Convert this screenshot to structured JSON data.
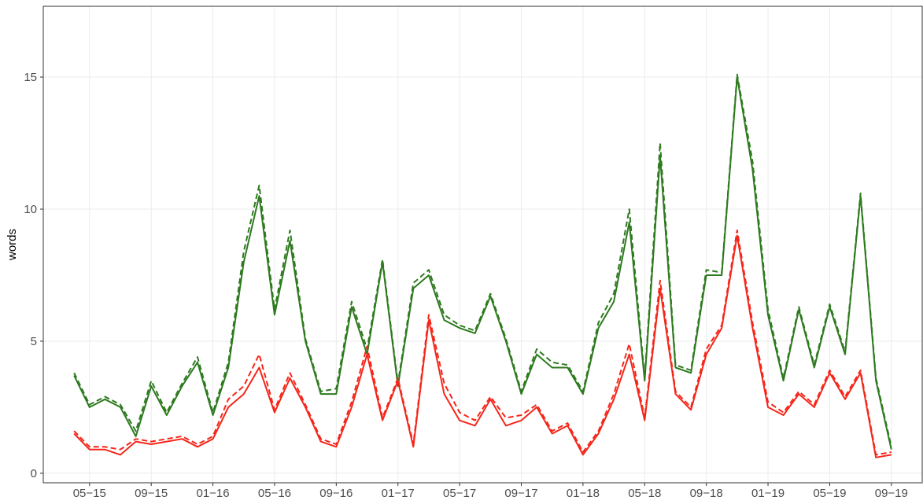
{
  "chart_data": {
    "type": "line",
    "y_label": "words",
    "x": [
      "2015-04",
      "2015-05",
      "2015-06",
      "2015-07",
      "2015-08",
      "2015-09",
      "2015-10",
      "2015-11",
      "2015-12",
      "2016-01",
      "2016-02",
      "2016-03",
      "2016-04",
      "2016-05",
      "2016-06",
      "2016-07",
      "2016-08",
      "2016-09",
      "2016-10",
      "2016-11",
      "2016-12",
      "2017-01",
      "2017-02",
      "2017-03",
      "2017-04",
      "2017-05",
      "2017-06",
      "2017-07",
      "2017-08",
      "2017-09",
      "2017-10",
      "2017-11",
      "2017-12",
      "2018-01",
      "2018-02",
      "2018-03",
      "2018-04",
      "2018-05",
      "2018-06",
      "2018-07",
      "2018-08",
      "2018-09",
      "2018-10",
      "2018-11",
      "2018-12",
      "2019-01",
      "2019-02",
      "2019-03",
      "2019-04",
      "2019-05",
      "2019-06",
      "2019-07",
      "2019-08",
      "2019-09"
    ],
    "series": [
      {
        "color": "#2e7a1f",
        "linestyle": "solid",
        "values": [
          3.7,
          2.5,
          2.8,
          2.5,
          1.4,
          3.3,
          2.2,
          3.3,
          4.2,
          2.2,
          4.0,
          8.0,
          10.5,
          6.0,
          8.8,
          5.0,
          3.0,
          3.0,
          6.3,
          4.5,
          8.0,
          3.3,
          7.0,
          7.5,
          5.8,
          5.5,
          5.3,
          6.7,
          5.0,
          3.0,
          4.5,
          4.0,
          4.0,
          3.0,
          5.5,
          6.5,
          9.5,
          3.5,
          12.0,
          4.0,
          3.8,
          7.5,
          7.5,
          15.0,
          11.5,
          6.0,
          3.5,
          6.2,
          4.0,
          6.3,
          4.5,
          10.5,
          3.5,
          0.9
        ]
      },
      {
        "color": "#2e7a1f",
        "linestyle": "dashed",
        "values": [
          3.8,
          2.6,
          2.9,
          2.6,
          1.6,
          3.5,
          2.3,
          3.4,
          4.4,
          2.3,
          4.2,
          8.4,
          10.9,
          6.2,
          9.2,
          5.1,
          3.1,
          3.2,
          6.5,
          4.7,
          8.1,
          3.4,
          7.2,
          7.7,
          6.0,
          5.6,
          5.4,
          6.8,
          5.1,
          3.1,
          4.7,
          4.2,
          4.1,
          3.1,
          5.7,
          6.8,
          10.0,
          3.6,
          12.5,
          4.1,
          3.9,
          7.7,
          7.6,
          15.1,
          11.8,
          6.2,
          3.6,
          6.3,
          4.1,
          6.4,
          4.6,
          10.6,
          3.6,
          1.0
        ]
      },
      {
        "color": "#f5261a",
        "linestyle": "solid",
        "values": [
          1.5,
          0.9,
          0.9,
          0.7,
          1.2,
          1.1,
          1.2,
          1.3,
          1.0,
          1.3,
          2.5,
          3.0,
          4.0,
          2.3,
          3.6,
          2.5,
          1.2,
          1.0,
          2.5,
          4.5,
          2.0,
          3.5,
          1.0,
          5.8,
          3.0,
          2.0,
          1.8,
          2.8,
          1.8,
          2.0,
          2.5,
          1.5,
          1.8,
          0.7,
          1.5,
          2.8,
          4.5,
          2.0,
          7.0,
          3.0,
          2.4,
          4.5,
          5.5,
          9.0,
          5.5,
          2.5,
          2.2,
          3.0,
          2.5,
          3.8,
          2.8,
          3.8,
          0.6,
          0.7
        ]
      },
      {
        "color": "#f5261a",
        "linestyle": "dashed",
        "values": [
          1.6,
          1.0,
          1.0,
          0.9,
          1.3,
          1.2,
          1.3,
          1.4,
          1.1,
          1.4,
          2.8,
          3.3,
          4.5,
          2.4,
          3.8,
          2.6,
          1.3,
          1.1,
          2.7,
          4.8,
          2.1,
          3.6,
          1.1,
          6.0,
          3.4,
          2.3,
          2.0,
          2.9,
          2.1,
          2.2,
          2.6,
          1.6,
          1.9,
          0.8,
          1.6,
          3.0,
          4.9,
          2.1,
          7.3,
          3.1,
          2.5,
          4.7,
          5.6,
          9.2,
          5.7,
          2.7,
          2.3,
          3.1,
          2.6,
          3.9,
          2.9,
          3.9,
          0.7,
          0.8
        ]
      }
    ],
    "xlim": [
      "2015-02",
      "2019-11"
    ],
    "xticks": [
      {
        "value": "2015-05",
        "label": "05−15"
      },
      {
        "value": "2015-09",
        "label": "09−15"
      },
      {
        "value": "2016-01",
        "label": "01−16"
      },
      {
        "value": "2016-05",
        "label": "05−16"
      },
      {
        "value": "2016-09",
        "label": "09−16"
      },
      {
        "value": "2017-01",
        "label": "01−17"
      },
      {
        "value": "2017-05",
        "label": "05−17"
      },
      {
        "value": "2017-09",
        "label": "09−17"
      },
      {
        "value": "2018-01",
        "label": "01−18"
      },
      {
        "value": "2018-05",
        "label": "05−18"
      },
      {
        "value": "2018-09",
        "label": "09−18"
      },
      {
        "value": "2019-01",
        "label": "01−19"
      },
      {
        "value": "2019-05",
        "label": "05−19"
      },
      {
        "value": "2019-09",
        "label": "09−19"
      }
    ],
    "ylim": [
      -0.36,
      17.68
    ],
    "yticks": [
      0,
      5,
      10,
      15
    ],
    "grid": true
  }
}
